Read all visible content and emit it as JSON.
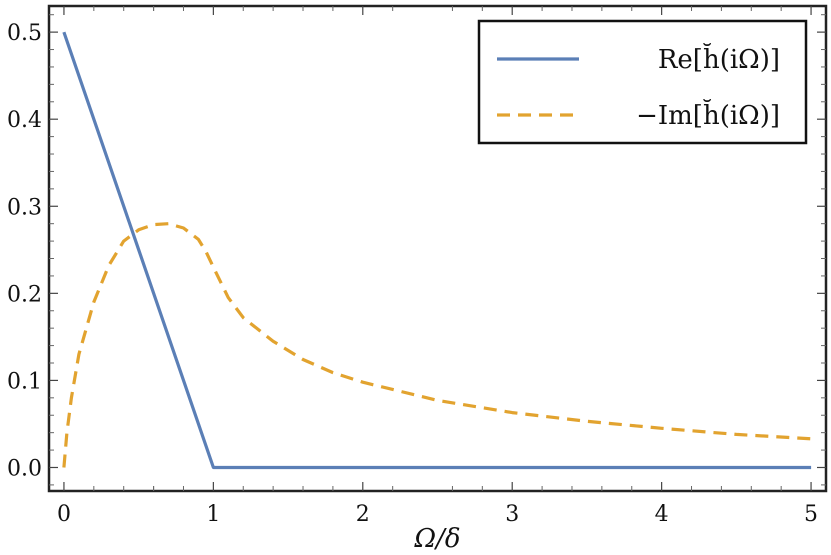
{
  "chart_data": {
    "type": "line",
    "title": "",
    "xlabel": "Ω/δ",
    "ylabel": "",
    "xlim": [
      -0.1,
      5.1
    ],
    "ylim": [
      -0.027,
      0.53
    ],
    "grid": false,
    "legend_position": "top-right",
    "x_ticks": [
      0,
      1,
      2,
      3,
      4,
      5
    ],
    "y_ticks": [
      0.0,
      0.1,
      0.2,
      0.3,
      0.4,
      0.5
    ],
    "x_tick_labels": [
      "0",
      "1",
      "2",
      "3",
      "4",
      "5"
    ],
    "y_tick_labels": [
      "0.0",
      "0.1",
      "0.2",
      "0.3",
      "0.4",
      "0.5"
    ],
    "series": [
      {
        "name": "Re[h̆(iΩ)]",
        "color": "#5b7fb6",
        "dash": "solid",
        "x": [
          0,
          0.5,
          1.0,
          1.5,
          2.0,
          2.5,
          3.0,
          3.5,
          4.0,
          4.5,
          5.0
        ],
        "y": [
          0.5,
          0.25,
          0.0,
          0.0,
          0.0,
          0.0,
          0.0,
          0.0,
          0.0,
          0.0,
          0.0
        ]
      },
      {
        "name": "−Im[h̆(iΩ)]",
        "color": "#e2a32f",
        "dash": "dashed",
        "x": [
          0,
          0.02,
          0.05,
          0.1,
          0.2,
          0.3,
          0.4,
          0.5,
          0.6,
          0.7,
          0.8,
          0.9,
          0.95,
          1.0,
          1.1,
          1.2,
          1.4,
          1.6,
          1.8,
          2.0,
          2.5,
          3.0,
          3.5,
          4.0,
          4.5,
          5.0
        ],
        "y": [
          0.0,
          0.04,
          0.08,
          0.13,
          0.19,
          0.232,
          0.26,
          0.273,
          0.279,
          0.28,
          0.275,
          0.262,
          0.248,
          0.23,
          0.195,
          0.172,
          0.145,
          0.124,
          0.109,
          0.098,
          0.077,
          0.063,
          0.053,
          0.045,
          0.038,
          0.033
        ]
      }
    ]
  }
}
